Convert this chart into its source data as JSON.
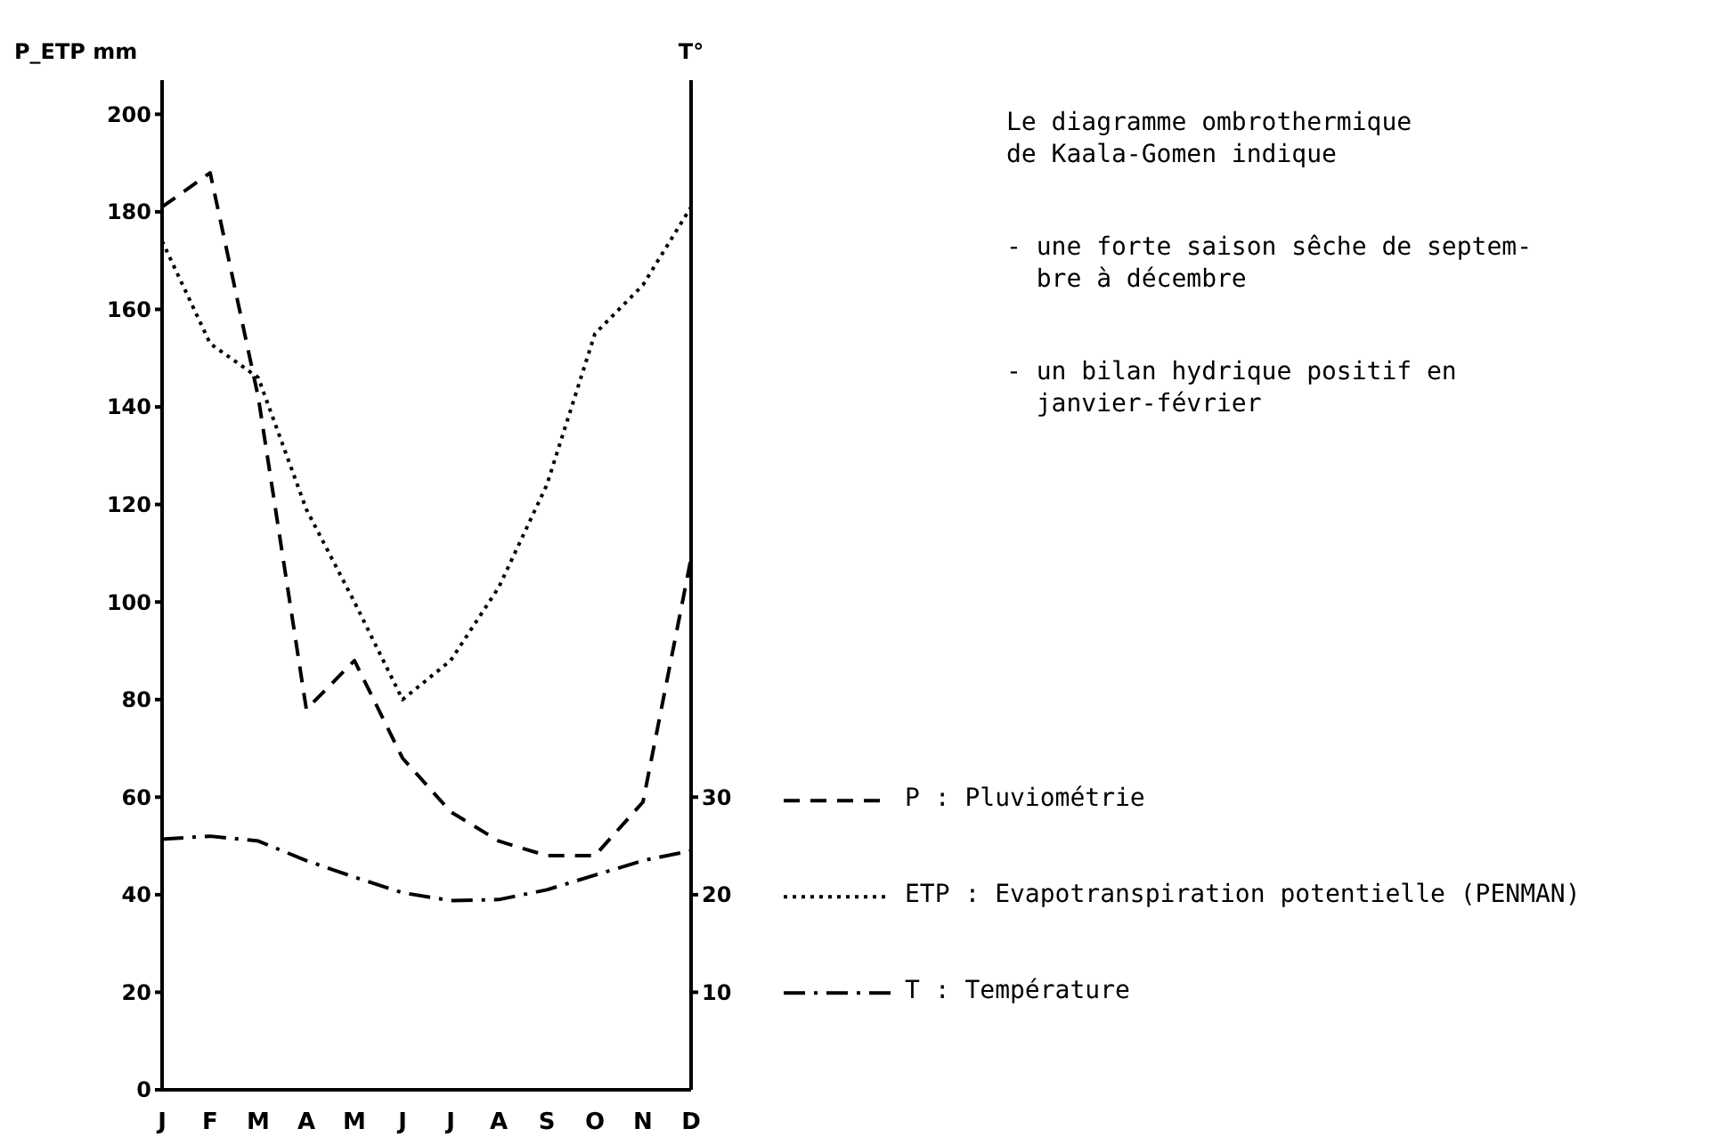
{
  "chart_data": {
    "type": "line",
    "ylabel": "P_ETP mm",
    "y2label": "T°",
    "categories": [
      "J",
      "F",
      "M",
      "A",
      "M",
      "J",
      "J",
      "A",
      "S",
      "O",
      "N",
      "D"
    ],
    "ylim": [
      0,
      207
    ],
    "yticks": [
      0,
      20,
      40,
      60,
      80,
      100,
      120,
      140,
      160,
      180,
      200
    ],
    "y2lim": [
      0,
      103.5
    ],
    "y2ticks": [
      10,
      20,
      30
    ],
    "series": [
      {
        "name": "P : Pluviométrie",
        "color": "#000000",
        "line_style": "dashed",
        "values": [
          181,
          188,
          142,
          78,
          88,
          68,
          57,
          51,
          48,
          48,
          59,
          109
        ]
      },
      {
        "name": "ETP : Evapotranspiration potentielle (PENMAN)",
        "color": "#000000",
        "line_style": "dotted",
        "values": [
          174,
          153,
          146,
          119,
          100,
          80,
          88,
          103,
          124,
          155,
          165,
          181
        ]
      },
      {
        "name": "T : Température",
        "color": "#000000",
        "line_style": "dashdot",
        "axis": "y2",
        "values": [
          25.7,
          26,
          25.5,
          23.5,
          21.8,
          20.2,
          19.4,
          19.5,
          20.5,
          22,
          23.5,
          24.5
        ]
      }
    ],
    "legend": "right",
    "grid": false,
    "marker": "none",
    "annotations": [
      "Le diagramme ombrothermique\nde Kaala-Gomen indique",
      "- une forte saison sêche de septem-\n  bre à décembre",
      "- un bilan hydrique positif en\n  janvier-février"
    ]
  }
}
